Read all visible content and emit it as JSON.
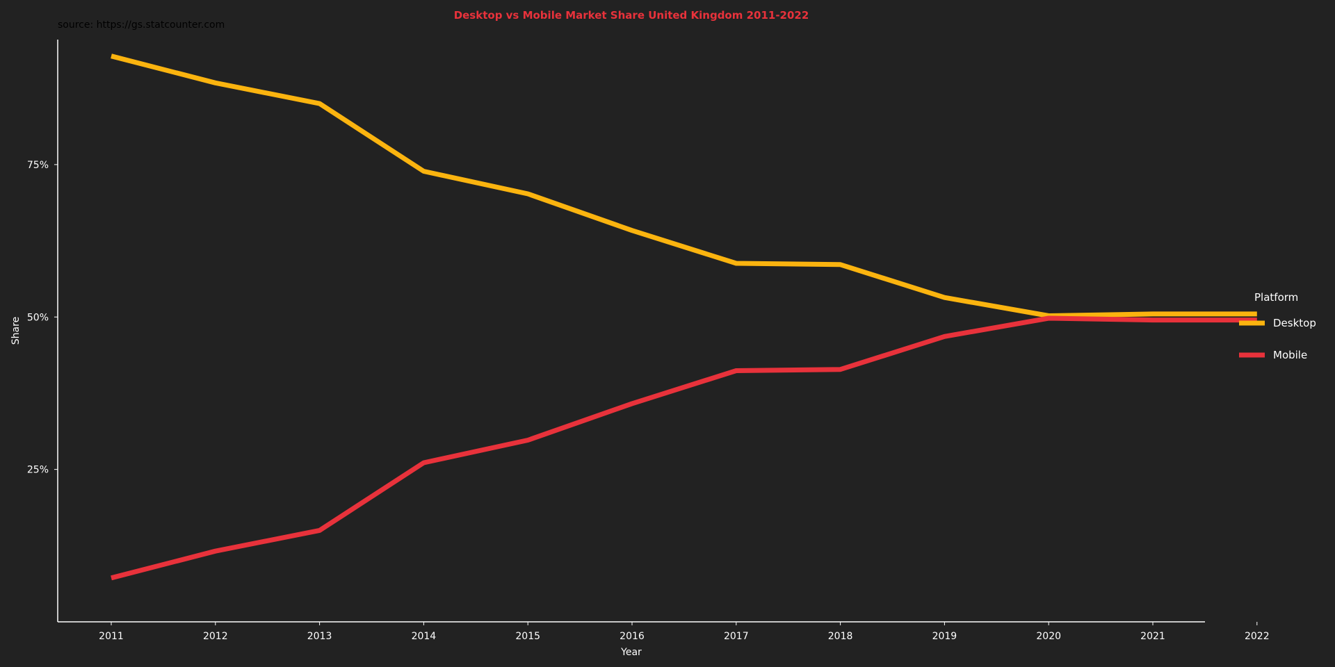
{
  "chart_data": {
    "type": "line",
    "title": "Desktop vs Mobile Market Share United Kingdom 2011-2022",
    "caption": "source: https://gs.statcounter.com",
    "xlabel": "Year",
    "ylabel": "Share",
    "categories": [
      "2011",
      "2012",
      "2013",
      "2014",
      "2015",
      "2016",
      "2017",
      "2018",
      "2019",
      "2020",
      "2021",
      "2022"
    ],
    "y_ticks": [
      {
        "value": 0.25,
        "label": "25%"
      },
      {
        "value": 0.5,
        "label": "50%"
      },
      {
        "value": 0.75,
        "label": "75%"
      }
    ],
    "ylim": [
      0.0,
      0.955
    ],
    "grid": false,
    "legend": {
      "title": "Platform",
      "placement": "right"
    },
    "series": [
      {
        "name": "Desktop",
        "color": "#fbb40f",
        "values": [
          0.928,
          0.884,
          0.85,
          0.739,
          0.702,
          0.642,
          0.588,
          0.586,
          0.532,
          0.502,
          0.505,
          0.505
        ]
      },
      {
        "name": "Mobile",
        "color": "#e8323b",
        "values": [
          0.072,
          0.116,
          0.15,
          0.261,
          0.298,
          0.358,
          0.412,
          0.414,
          0.468,
          0.498,
          0.495,
          0.495
        ]
      }
    ]
  }
}
